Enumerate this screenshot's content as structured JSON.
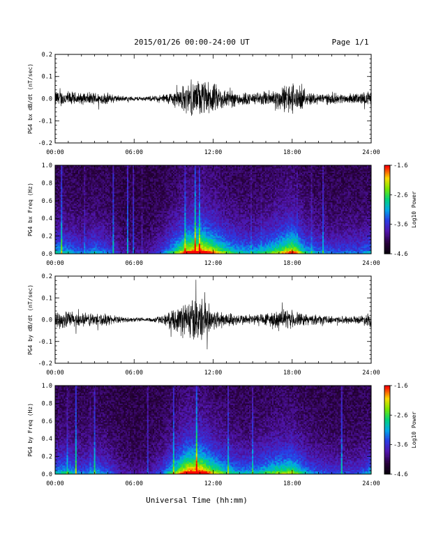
{
  "page": {
    "title": "2015/01/26  00:00-24:00 UT",
    "page_label": "Page 1/1",
    "xlabel": "Universal Time (hh:mm)"
  },
  "chart_data": [
    {
      "type": "line",
      "ylabel": "PG4 bx dB/dt (nT/sec)",
      "xlim_hours": [
        0,
        24
      ],
      "ylim": [
        -0.2,
        0.2
      ],
      "x_ticks": [
        "00:00",
        "06:00",
        "12:00",
        "18:00",
        "24:00"
      ],
      "y_ticks": [
        "0.2",
        "0.1",
        "0.0",
        "-0.1",
        "-0.2"
      ],
      "envelope": {
        "hours": [
          0,
          1,
          2,
          3,
          4,
          5,
          6,
          7,
          8,
          9,
          10,
          11,
          12,
          13,
          14,
          15,
          16,
          17,
          18,
          19,
          20,
          21,
          22,
          23,
          24
        ],
        "amplitude": [
          0.045,
          0.04,
          0.03,
          0.035,
          0.03,
          0.015,
          0.012,
          0.012,
          0.02,
          0.04,
          0.08,
          0.1,
          0.08,
          0.05,
          0.04,
          0.03,
          0.04,
          0.06,
          0.09,
          0.04,
          0.03,
          0.03,
          0.025,
          0.03,
          0.04
        ]
      }
    },
    {
      "type": "heatmap",
      "ylabel": "PG4 bx Freq (Hz)",
      "xlim_hours": [
        0,
        24
      ],
      "ylim": [
        0,
        1.0
      ],
      "x_ticks": [
        "00:00",
        "06:00",
        "12:00",
        "18:00",
        "24:00"
      ],
      "y_ticks": [
        "1.0",
        "0.8",
        "0.6",
        "0.4",
        "0.2",
        "0.0"
      ],
      "colorbar": {
        "label": "Log10 Power",
        "min": -4.6,
        "max": -1.6,
        "ticks": [
          "-1.6",
          "-2.6",
          "-3.6",
          "-4.6"
        ]
      },
      "activity_hours": [
        0,
        1,
        2,
        3,
        4,
        5,
        6,
        7,
        8,
        9,
        10,
        11,
        12,
        13,
        14,
        15,
        16,
        17,
        18,
        19,
        20,
        21,
        22,
        23,
        24
      ],
      "activity_level": [
        0.45,
        0.4,
        0.3,
        0.4,
        0.3,
        0.15,
        0.12,
        0.12,
        0.25,
        0.5,
        0.85,
        1.0,
        0.8,
        0.55,
        0.45,
        0.4,
        0.5,
        0.65,
        0.85,
        0.45,
        0.35,
        0.3,
        0.3,
        0.3,
        0.4
      ]
    },
    {
      "type": "line",
      "ylabel": "PG4 by dB/dt (nT/sec)",
      "xlim_hours": [
        0,
        24
      ],
      "ylim": [
        -0.2,
        0.2
      ],
      "x_ticks": [
        "00:00",
        "06:00",
        "12:00",
        "18:00",
        "24:00"
      ],
      "y_ticks": [
        "0.2",
        "0.1",
        "0.0",
        "-0.1",
        "-0.2"
      ],
      "envelope": {
        "hours": [
          0,
          1,
          2,
          3,
          4,
          5,
          6,
          7,
          8,
          9,
          10,
          11,
          12,
          13,
          14,
          15,
          16,
          17,
          18,
          19,
          20,
          21,
          22,
          23,
          24
        ],
        "amplitude": [
          0.04,
          0.05,
          0.035,
          0.04,
          0.03,
          0.015,
          0.012,
          0.012,
          0.02,
          0.05,
          0.11,
          0.12,
          0.06,
          0.04,
          0.03,
          0.03,
          0.04,
          0.05,
          0.05,
          0.03,
          0.025,
          0.02,
          0.02,
          0.02,
          0.04
        ]
      }
    },
    {
      "type": "heatmap",
      "ylabel": "PG4 by Freq (Hz)",
      "xlim_hours": [
        0,
        24
      ],
      "ylim": [
        0,
        1.0
      ],
      "x_ticks": [
        "00:00",
        "06:00",
        "12:00",
        "18:00",
        "24:00"
      ],
      "y_ticks": [
        "1.0",
        "0.8",
        "0.6",
        "0.4",
        "0.2",
        "0.0"
      ],
      "colorbar": {
        "label": "Log10 Power",
        "min": -4.6,
        "max": -1.6,
        "ticks": [
          "-1.6",
          "-2.6",
          "-3.6",
          "-4.6"
        ]
      },
      "activity_hours": [
        0,
        1,
        2,
        3,
        4,
        5,
        6,
        7,
        8,
        9,
        10,
        11,
        12,
        13,
        14,
        15,
        16,
        17,
        18,
        19,
        20,
        21,
        22,
        23,
        24
      ],
      "activity_level": [
        0.4,
        0.45,
        0.3,
        0.4,
        0.3,
        0.15,
        0.12,
        0.12,
        0.25,
        0.55,
        0.95,
        1.0,
        0.7,
        0.5,
        0.4,
        0.4,
        0.5,
        0.6,
        0.65,
        0.4,
        0.3,
        0.25,
        0.25,
        0.25,
        0.4
      ]
    }
  ]
}
